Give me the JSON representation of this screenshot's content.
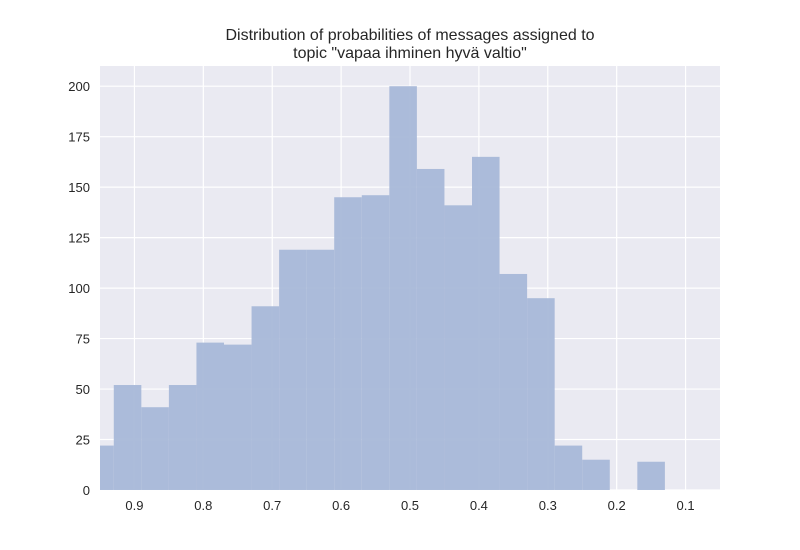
{
  "chart_data": {
    "type": "bar",
    "title_lines": [
      "Distribution of probabilities of messages assigned to",
      "topic \"vapaa ihminen hyvä valtio\""
    ],
    "xlabel": "",
    "ylabel": "",
    "x_axis_inverted": true,
    "xlim": [
      0.95,
      0.05
    ],
    "ylim": [
      0,
      210
    ],
    "grid": true,
    "x_ticks": [
      0.9,
      0.8,
      0.7,
      0.6,
      0.5,
      0.4,
      0.3,
      0.2,
      0.1
    ],
    "x_tick_labels": [
      "0.9",
      "0.8",
      "0.7",
      "0.6",
      "0.5",
      "0.4",
      "0.3",
      "0.2",
      "0.1"
    ],
    "y_ticks": [
      0,
      25,
      50,
      75,
      100,
      125,
      150,
      175,
      200
    ],
    "y_tick_labels": [
      "0",
      "25",
      "50",
      "75",
      "100",
      "125",
      "150",
      "175",
      "200"
    ],
    "bin_edges": [
      0.95,
      0.93,
      0.89,
      0.85,
      0.81,
      0.77,
      0.73,
      0.69,
      0.65,
      0.61,
      0.57,
      0.53,
      0.49,
      0.45,
      0.41,
      0.37,
      0.33,
      0.29,
      0.25,
      0.21,
      0.17,
      0.13,
      0.09
    ],
    "values": [
      22,
      52,
      41,
      52,
      73,
      72,
      91,
      119,
      119,
      145,
      146,
      200,
      159,
      141,
      165,
      107,
      95,
      22,
      15,
      0,
      14,
      0
    ],
    "colors": {
      "bar": "#a8b8d8",
      "background": "#eaeaf2",
      "grid": "#ffffff",
      "text": "#262626"
    }
  }
}
